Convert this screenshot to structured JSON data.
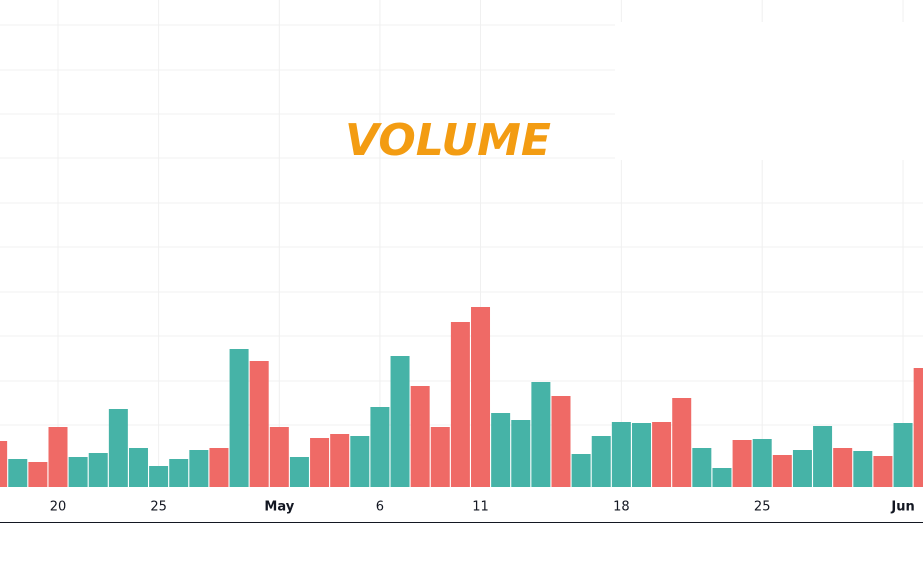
{
  "chart_data": {
    "type": "bar",
    "title": "VOLUME",
    "categories": [
      null,
      null,
      null,
      "20",
      null,
      null,
      null,
      null,
      "25",
      null,
      null,
      null,
      null,
      null,
      "May",
      null,
      null,
      null,
      null,
      "6",
      null,
      null,
      null,
      null,
      "11",
      null,
      null,
      null,
      null,
      null,
      null,
      "18",
      null,
      null,
      null,
      null,
      null,
      null,
      "25",
      null,
      null,
      null,
      null,
      null,
      null,
      "Jun",
      null
    ],
    "values": [
      46,
      28,
      25,
      60,
      30,
      34,
      78,
      39,
      21,
      28,
      37,
      39,
      138,
      126,
      60,
      30,
      49,
      53,
      51,
      80,
      131,
      101,
      60,
      165,
      180,
      74,
      67,
      105,
      91,
      33,
      51,
      65,
      64,
      65,
      89,
      39,
      19,
      47,
      48,
      32,
      37,
      61,
      39,
      36,
      31,
      64,
      119
    ],
    "colors": [
      "#ef6a66",
      "#46b3a7",
      "#ef6a66",
      "#ef6a66",
      "#46b3a7",
      "#46b3a7",
      "#46b3a7",
      "#46b3a7",
      "#46b3a7",
      "#46b3a7",
      "#46b3a7",
      "#ef6a66",
      "#46b3a7",
      "#ef6a66",
      "#ef6a66",
      "#46b3a7",
      "#ef6a66",
      "#ef6a66",
      "#46b3a7",
      "#46b3a7",
      "#46b3a7",
      "#ef6a66",
      "#ef6a66",
      "#ef6a66",
      "#ef6a66",
      "#46b3a7",
      "#46b3a7",
      "#46b3a7",
      "#ef6a66",
      "#46b3a7",
      "#46b3a7",
      "#46b3a7",
      "#46b3a7",
      "#ef6a66",
      "#ef6a66",
      "#46b3a7",
      "#46b3a7",
      "#ef6a66",
      "#46b3a7",
      "#ef6a66",
      "#46b3a7",
      "#46b3a7",
      "#ef6a66",
      "#46b3a7",
      "#ef6a66",
      "#46b3a7",
      "#ef6a66"
    ],
    "bold_categories": [
      "May",
      "Jun"
    ],
    "grid": true
  }
}
